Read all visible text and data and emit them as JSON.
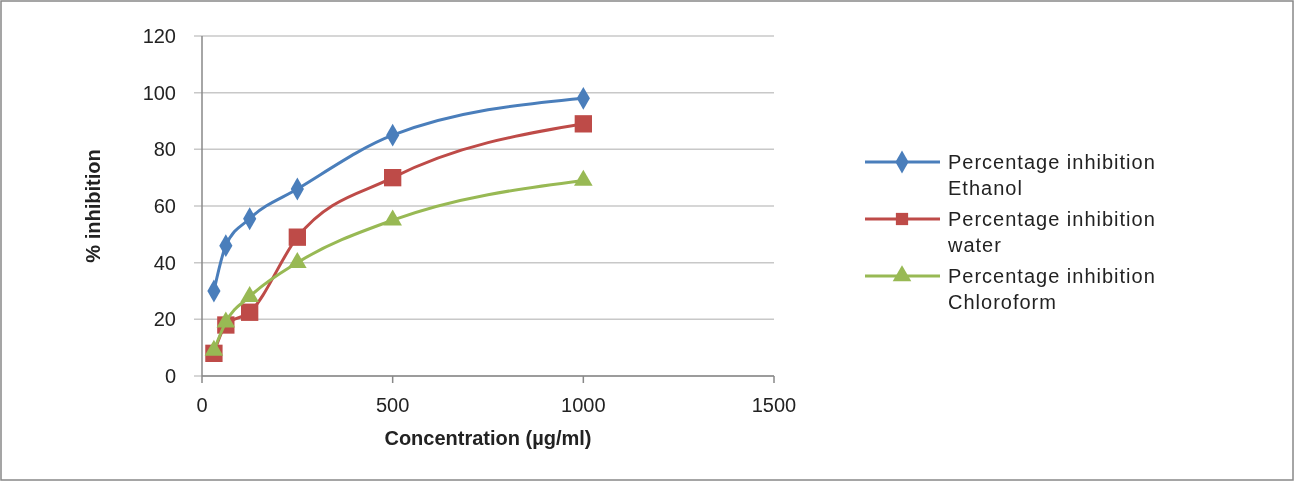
{
  "chart_data": {
    "type": "line",
    "xlabel": "Concentration  (µg/ml)",
    "ylabel": "% inhibition",
    "x": [
      31.25,
      62.5,
      125,
      250,
      500,
      1000
    ],
    "series": [
      {
        "name": "Percentage inhibition Ethanol",
        "color": "#4a7ebb",
        "marker": "diamond",
        "values": [
          30,
          46,
          55.5,
          66,
          85,
          98
        ]
      },
      {
        "name": "Percentage inhibition water",
        "color": "#be4b48",
        "marker": "square",
        "values": [
          8,
          18,
          22.5,
          49,
          70,
          89
        ]
      },
      {
        "name": "Percentage inhibition Chloroform",
        "color": "#98b954",
        "marker": "triangle",
        "values": [
          9,
          19,
          28,
          40,
          55,
          69
        ]
      }
    ],
    "xlim": [
      0,
      1500
    ],
    "xticks": [
      0,
      500,
      1000,
      1500
    ],
    "ylim": [
      0,
      120
    ],
    "yticks": [
      0,
      20,
      40,
      60,
      80,
      100,
      120
    ],
    "grid": "y",
    "legend": "right"
  }
}
